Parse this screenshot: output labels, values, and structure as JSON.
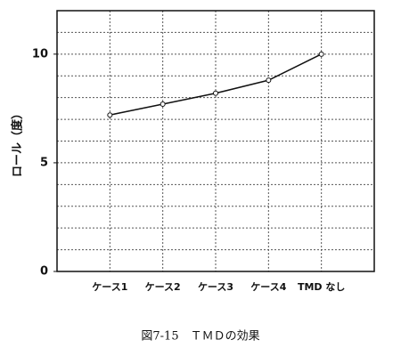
{
  "chart_data": {
    "type": "line",
    "ylabel": "ロール（度）",
    "caption": "図7-15　ＴＭＤの効果",
    "categories": [
      "ケース1",
      "ケース2",
      "ケース3",
      "ケース4",
      "TMD なし"
    ],
    "values": [
      7.2,
      7.7,
      8.2,
      8.8,
      10.0
    ],
    "color": "#111111",
    "ylim": [
      0,
      12
    ],
    "yticks": [
      0,
      5,
      10
    ],
    "ygrid": [
      1,
      2,
      3,
      4,
      5,
      6,
      7,
      8,
      9,
      10,
      11
    ],
    "grid": true
  }
}
